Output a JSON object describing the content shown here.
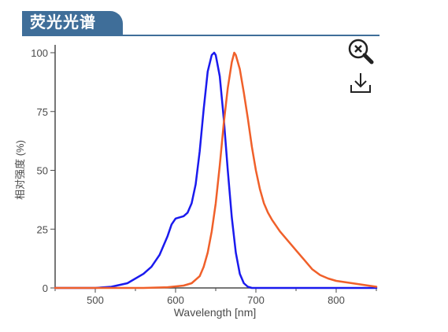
{
  "header": {
    "title": "荧光光谱"
  },
  "toolbar": {
    "zoom_reset_icon": "zoom-out-icon",
    "download_icon": "download-icon"
  },
  "colors": {
    "accent": "#3f6e99",
    "excitation": "#1a1aee",
    "emission": "#f0602a",
    "axis": "#4a4a4a"
  },
  "chart_data": {
    "type": "line",
    "xlabel": "Wavelength [nm]",
    "ylabel": "相对强度 (%)",
    "xlim": [
      450,
      850
    ],
    "ylim": [
      0,
      100
    ],
    "xticks": [
      500,
      600,
      700,
      800
    ],
    "yticks": [
      0,
      25,
      50,
      75,
      100
    ],
    "grid": false,
    "legend": "none",
    "series": [
      {
        "color": "#1a1aee",
        "x": [
          450,
          500,
          520,
          540,
          560,
          570,
          580,
          590,
          595,
          600,
          605,
          610,
          615,
          620,
          625,
          630,
          635,
          640,
          645,
          648,
          650,
          655,
          660,
          665,
          670,
          675,
          680,
          685,
          690,
          695,
          700,
          710,
          750,
          850
        ],
        "y": [
          0,
          0,
          0.5,
          2,
          6,
          9,
          14,
          22,
          27,
          29.5,
          30,
          30.5,
          32,
          36,
          44,
          58,
          76,
          92,
          99,
          100,
          99,
          90,
          72,
          50,
          30,
          15,
          6,
          2,
          0.5,
          0,
          0,
          0,
          0,
          0
        ]
      },
      {
        "color": "#f0602a",
        "x": [
          450,
          560,
          590,
          610,
          620,
          630,
          635,
          640,
          645,
          650,
          655,
          660,
          665,
          670,
          673,
          675,
          680,
          685,
          690,
          695,
          700,
          705,
          710,
          715,
          720,
          730,
          740,
          750,
          760,
          770,
          780,
          790,
          800,
          820,
          840,
          850
        ],
        "y": [
          0,
          0,
          0.3,
          1,
          2,
          5,
          9,
          15,
          24,
          36,
          52,
          70,
          85,
          96,
          100,
          99,
          93,
          83,
          72,
          60,
          50,
          42,
          36,
          32,
          29,
          24,
          20,
          16,
          12,
          8,
          5.5,
          4,
          3,
          2,
          1,
          0.5
        ]
      }
    ]
  }
}
